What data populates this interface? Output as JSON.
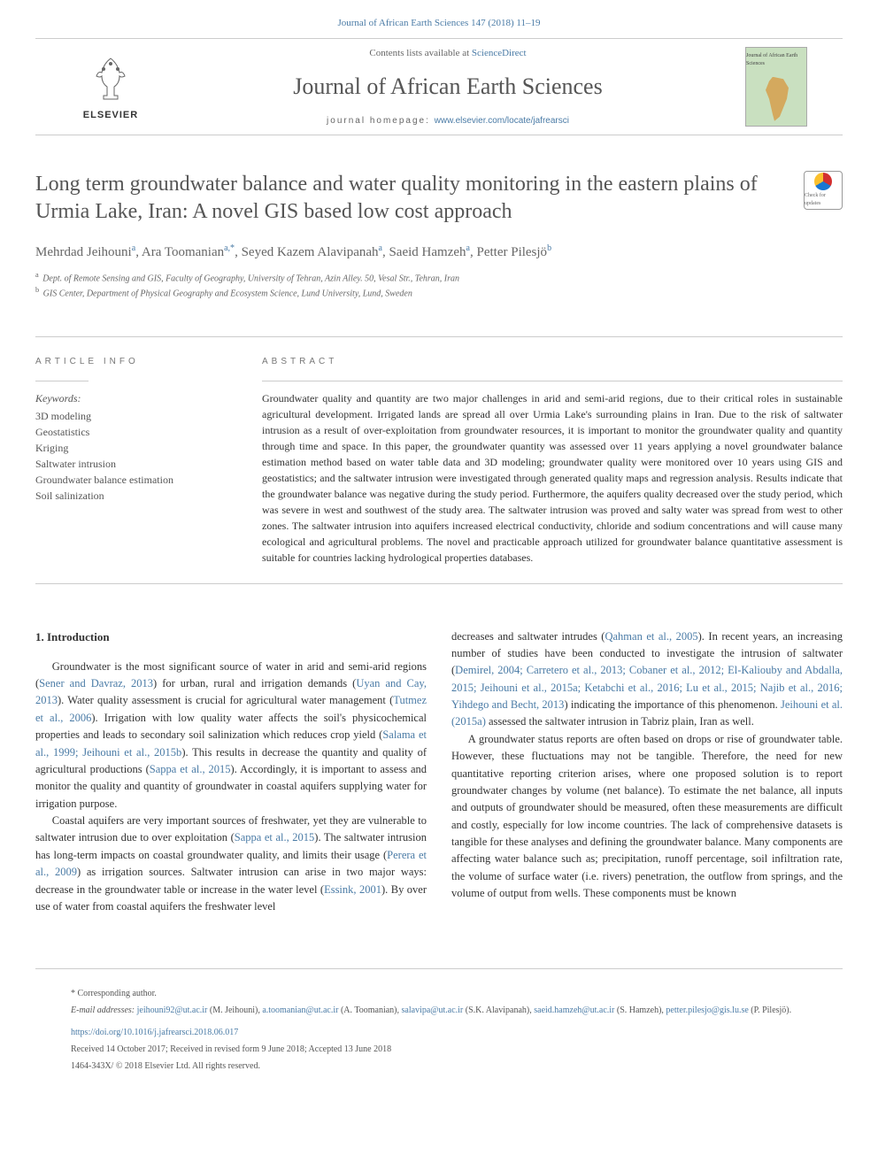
{
  "header_ref": "Journal of African Earth Sciences 147 (2018) 11–19",
  "topbar": {
    "contents_prefix": "Contents lists available at ",
    "contents_link": "ScienceDirect",
    "journal_title": "Journal of African Earth Sciences",
    "homepage_prefix": "journal homepage: ",
    "homepage_url": "www.elsevier.com/locate/jafrearsci",
    "elsevier_label": "ELSEVIER",
    "cover_text": "Journal of African Earth Sciences"
  },
  "check_updates_label": "Check for updates",
  "article": {
    "title": "Long term groundwater balance and water quality monitoring in the eastern plains of Urmia Lake, Iran: A novel GIS based low cost approach",
    "authors_html": "Mehrdad Jeihouni|a|, Ara Toomanian|a,*|, Seyed Kazem Alavipanah|a|, Saeid Hamzeh|a|, Petter Pilesjö|b|",
    "authors": [
      {
        "name": "Mehrdad Jeihouni",
        "sup": "a"
      },
      {
        "name": "Ara Toomanian",
        "sup": "a,*"
      },
      {
        "name": "Seyed Kazem Alavipanah",
        "sup": "a"
      },
      {
        "name": "Saeid Hamzeh",
        "sup": "a"
      },
      {
        "name": "Petter Pilesjö",
        "sup": "b"
      }
    ],
    "affiliations": [
      {
        "sup": "a",
        "text": "Dept. of Remote Sensing and GIS, Faculty of Geography, University of Tehran, Azin Alley. 50, Vesal Str., Tehran, Iran"
      },
      {
        "sup": "b",
        "text": "GIS Center, Department of Physical Geography and Ecosystem Science, Lund University, Lund, Sweden"
      }
    ]
  },
  "article_info_label": "ARTICLE INFO",
  "abstract_label": "ABSTRACT",
  "keywords_label": "Keywords:",
  "keywords": [
    "3D modeling",
    "Geostatistics",
    "Kriging",
    "Saltwater intrusion",
    "Groundwater balance estimation",
    "Soil salinization"
  ],
  "abstract_text": "Groundwater quality and quantity are two major challenges in arid and semi-arid regions, due to their critical roles in sustainable agricultural development. Irrigated lands are spread all over Urmia Lake's surrounding plains in Iran. Due to the risk of saltwater intrusion as a result of over-exploitation from groundwater resources, it is important to monitor the groundwater quality and quantity through time and space. In this paper, the groundwater quantity was assessed over 11 years applying a novel groundwater balance estimation method based on water table data and 3D modeling; groundwater quality were monitored over 10 years using GIS and geostatistics; and the saltwater intrusion were investigated through generated quality maps and regression analysis. Results indicate that the groundwater balance was negative during the study period. Furthermore, the aquifers quality decreased over the study period, which was severe in west and southwest of the study area. The saltwater intrusion was proved and salty water was spread from west to other zones. The saltwater intrusion into aquifers increased electrical conductivity, chloride and sodium concentrations and will cause many ecological and agricultural problems. The novel and practicable approach utilized for groundwater balance quantitative assessment is suitable for countries lacking hydrological properties databases.",
  "section1_heading": "1. Introduction",
  "col1_p1_a": "Groundwater is the most significant source of water in arid and semi-arid regions (",
  "col1_p1_ref1": "Sener and Davraz, 2013",
  "col1_p1_b": ") for urban, rural and irrigation demands (",
  "col1_p1_ref2": "Uyan and Cay, 2013",
  "col1_p1_c": "). Water quality assessment is crucial for agricultural water management (",
  "col1_p1_ref3": "Tutmez et al., 2006",
  "col1_p1_d": "). Irrigation with low quality water affects the soil's physicochemical properties and leads to secondary soil salinization which reduces crop yield (",
  "col1_p1_ref4": "Salama et al., 1999; Jeihouni et al., 2015b",
  "col1_p1_e": "). This results in decrease the quantity and quality of agricultural productions (",
  "col1_p1_ref5": "Sappa et al., 2015",
  "col1_p1_f": "). Accordingly, it is important to assess and monitor the quality and quantity of groundwater in coastal aquifers supplying water for irrigation purpose.",
  "col1_p2_a": "Coastal aquifers are very important sources of freshwater, yet they are vulnerable to saltwater intrusion due to over exploitation (",
  "col1_p2_ref1": "Sappa et al., 2015",
  "col1_p2_b": "). The saltwater intrusion has long-term impacts on coastal groundwater quality, and limits their usage (",
  "col1_p2_ref2": "Perera et al., 2009",
  "col1_p2_c": ") as irrigation sources. Saltwater intrusion can arise in two major ways: decrease in the groundwater table or increase in the water level (",
  "col1_p2_ref3": "Essink, 2001",
  "col1_p2_d": "). By over use of water from coastal aquifers the freshwater level",
  "col2_p1_a": "decreases and saltwater intrudes (",
  "col2_p1_ref1": "Qahman et al., 2005",
  "col2_p1_b": "). In recent years, an increasing number of studies have been conducted to investigate the intrusion of saltwater (",
  "col2_p1_ref2": "Demirel, 2004; Carretero et al., 2013; Cobaner et al., 2012; El-Kaliouby and Abdalla, 2015; Jeihouni et al., 2015a; Ketabchi et al., 2016; Lu et al., 2015; Najib et al., 2016; Yihdego and Becht, 2013",
  "col2_p1_c": ") indicating the importance of this phenomenon. ",
  "col2_p1_ref3": "Jeihouni et al. (2015a)",
  "col2_p1_d": " assessed the saltwater intrusion in Tabriz plain, Iran as well.",
  "col2_p2": "A groundwater status reports are often based on drops or rise of groundwater table. However, these fluctuations may not be tangible. Therefore, the need for new quantitative reporting criterion arises, where one proposed solution is to report groundwater changes by volume (net balance). To estimate the net balance, all inputs and outputs of groundwater should be measured, often these measurements are difficult and costly, especially for low income countries. The lack of comprehensive datasets is tangible for these analyses and defining the groundwater balance. Many components are affecting water balance such as; precipitation, runoff percentage, soil infiltration rate, the volume of surface water (i.e. rivers) penetration, the outflow from springs, and the volume of output from wells. These components must be known",
  "footer": {
    "corr": "* Corresponding author.",
    "emails_label": "E-mail addresses: ",
    "emails": [
      {
        "email": "jeihouni92@ut.ac.ir",
        "name": "(M. Jeihouni)"
      },
      {
        "email": "a.toomanian@ut.ac.ir",
        "name": "(A. Toomanian)"
      },
      {
        "email": "salavipa@ut.ac.ir",
        "name": "(S.K. Alavipanah)"
      },
      {
        "email": "saeid.hamzeh@ut.ac.ir",
        "name": "(S. Hamzeh)"
      },
      {
        "email": "petter.pilesjo@gis.lu.se",
        "name": "(P. Pilesjö)"
      }
    ],
    "doi": "https://doi.org/10.1016/j.jafrearsci.2018.06.017",
    "received": "Received 14 October 2017; Received in revised form 9 June 2018; Accepted 13 June 2018",
    "copyright": "1464-343X/ © 2018 Elsevier Ltd. All rights reserved."
  },
  "colors": {
    "link": "#4a7ba6",
    "text": "#333333",
    "muted": "#666666",
    "border": "#cccccc"
  }
}
